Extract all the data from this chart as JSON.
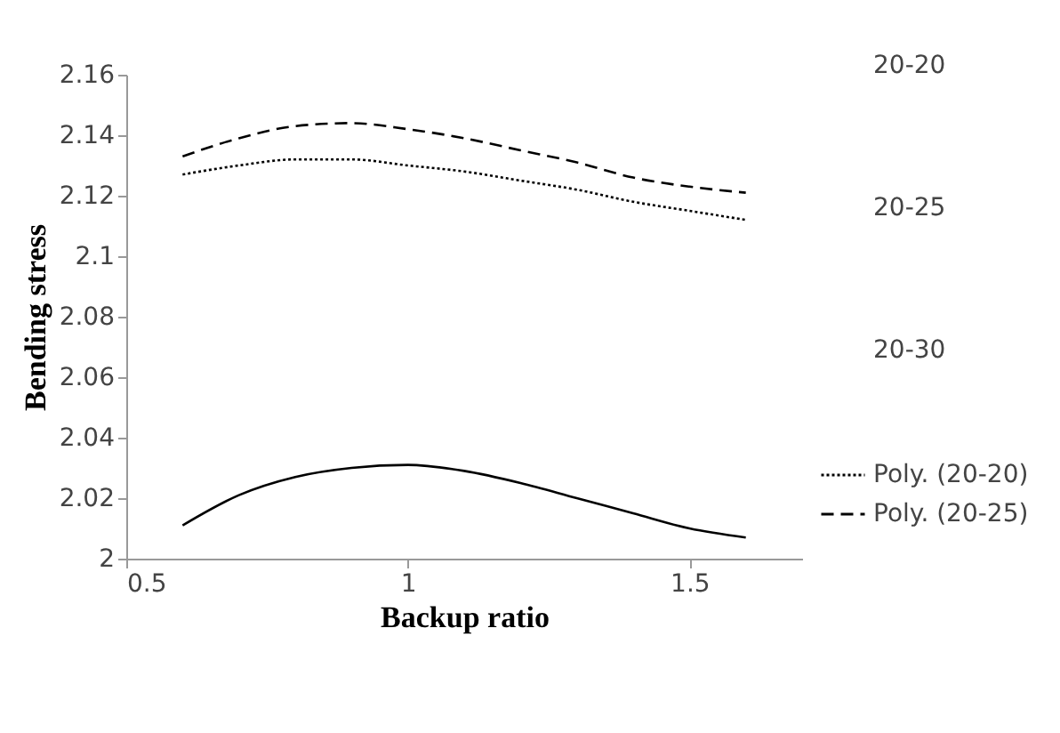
{
  "chart_data": {
    "type": "line",
    "xlabel": "Backup ratio",
    "ylabel": "Bending stress",
    "x": [
      0.6,
      0.7,
      0.8,
      0.9,
      1.0,
      1.1,
      1.2,
      1.3,
      1.4,
      1.5,
      1.6
    ],
    "series": [
      {
        "name": "Poly. (20-20)",
        "color": "#000000",
        "line_style": "dotted",
        "values": [
          2.127,
          2.13,
          2.132,
          2.132,
          2.13,
          2.128,
          2.125,
          2.122,
          2.118,
          2.115,
          2.112
        ]
      },
      {
        "name": "Poly. (20-25)",
        "color": "#000000",
        "line_style": "dashed",
        "values": [
          2.133,
          2.139,
          2.143,
          2.144,
          2.142,
          2.139,
          2.135,
          2.131,
          2.126,
          2.123,
          2.121
        ]
      },
      {
        "color": "#000000",
        "line_style": "solid",
        "values": [
          2.011,
          2.021,
          2.027,
          2.03,
          2.031,
          2.029,
          2.025,
          2.02,
          2.015,
          2.01,
          2.007
        ]
      }
    ],
    "annotations": [
      "20-20",
      "20-25",
      "20-30"
    ],
    "xlim": [
      0.5,
      1.7
    ],
    "xticks": [
      0.5,
      1,
      1.5
    ],
    "ylim": [
      2,
      2.16
    ],
    "yticks": [
      2,
      2.02,
      2.04,
      2.06,
      2.08,
      2.1,
      2.12,
      2.14,
      2.16
    ],
    "grid": false,
    "legend": "right",
    "marker": "none"
  }
}
